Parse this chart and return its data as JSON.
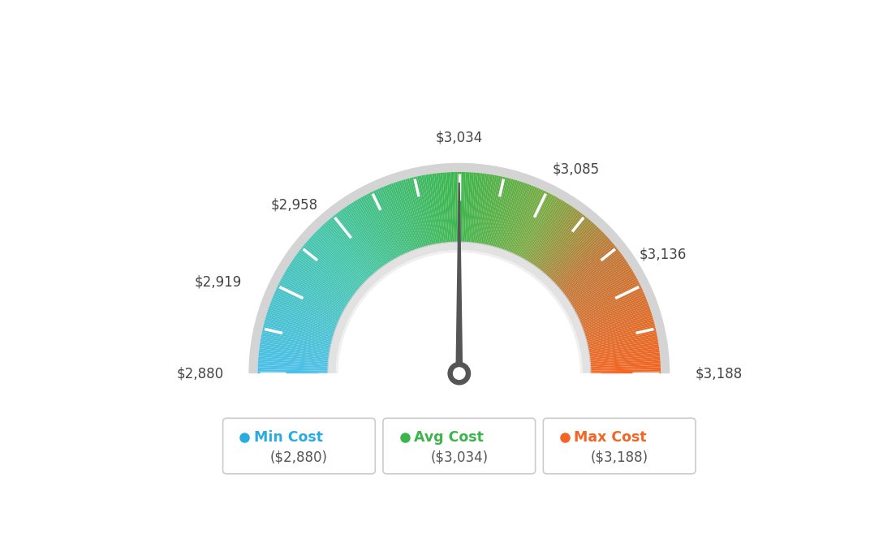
{
  "min_value": 2880,
  "max_value": 3188,
  "avg_value": 3034,
  "tick_values": [
    2880,
    2919,
    2958,
    3034,
    3085,
    3136,
    3188
  ],
  "tick_labels": [
    "$2,880",
    "$2,919",
    "$2,958",
    "$3,034",
    "$3,085",
    "$3,136",
    "$3,188"
  ],
  "legend_labels": [
    "Min Cost",
    "Avg Cost",
    "Max Cost"
  ],
  "legend_values": [
    "($2,880)",
    "($3,034)",
    "($3,188)"
  ],
  "legend_colors": [
    "#29ABE2",
    "#3BB54A",
    "#F26522"
  ],
  "color_stops": [
    [
      0.0,
      "#4BBFE8"
    ],
    [
      0.25,
      "#45C5AA"
    ],
    [
      0.5,
      "#3DB54A"
    ],
    [
      0.65,
      "#7BAA44"
    ],
    [
      0.78,
      "#C07838"
    ],
    [
      1.0,
      "#F26522"
    ]
  ],
  "background": "#ffffff",
  "needle_color": "#555555",
  "outer_border_color": "#d8d8d8",
  "inner_ring_color": "#e0e0e0",
  "inner_fill_color": "#ffffff"
}
